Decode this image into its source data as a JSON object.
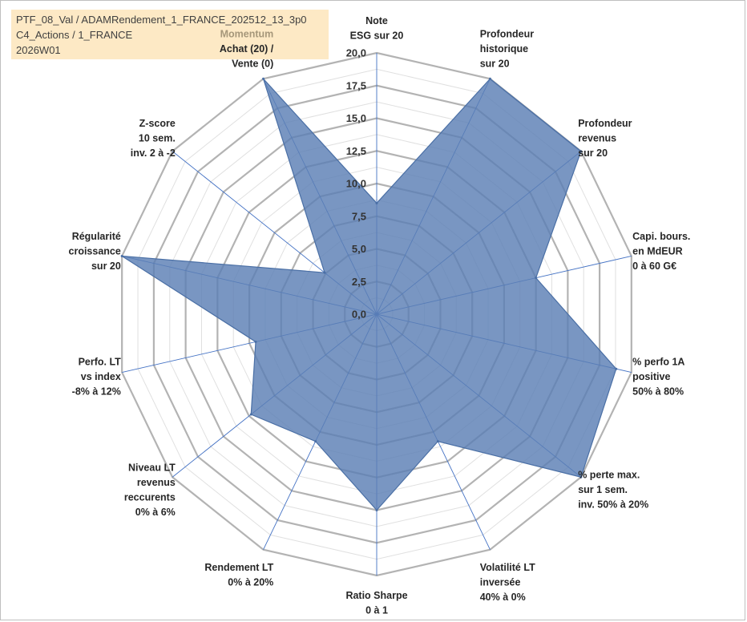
{
  "header": {
    "line1": "PTF_08_Val / ADAMRendement_1_FRANCE_202512_13_3p0",
    "line2": "C4_Actions / 1_FRANCE",
    "line3": "2026W01"
  },
  "colors": {
    "fill": "#5b7fb4",
    "stroke": "#4a6fa5",
    "spoke": "#4472c4",
    "grid_major": "#b3b3b3",
    "grid_minor": "#e0e0e0"
  },
  "chart_data": {
    "type": "radar",
    "title": "",
    "rmin": 0,
    "rmax": 20,
    "ticks": [
      "0,0",
      "2,5",
      "5,0",
      "7,5",
      "10,0",
      "12,5",
      "15,0",
      "17,5",
      "20,0"
    ],
    "tick_values": [
      0,
      2.5,
      5,
      7.5,
      10,
      12.5,
      15,
      17.5,
      20
    ],
    "minor_step": 1.25,
    "axes": [
      {
        "lines": [
          "Note",
          "ESG sur 20"
        ],
        "value": 8.5
      },
      {
        "lines": [
          "Profondeur",
          "historique",
          "sur 20"
        ],
        "value": 20
      },
      {
        "lines": [
          "Profondeur",
          "revenus",
          "sur 20"
        ],
        "value": 20
      },
      {
        "lines": [
          "Capi. bours.",
          "en MdEUR",
          "0 à 60 G€"
        ],
        "value": 12.5
      },
      {
        "lines": [
          "% perfo 1A",
          "positive",
          "50% à 80%"
        ],
        "value": 18.8
      },
      {
        "lines": [
          "% perte max.",
          "sur 1 sem.",
          "inv. 50% à 20%"
        ],
        "value": 20
      },
      {
        "lines": [
          "Volatilité LT",
          "inversée",
          "40% à 0%"
        ],
        "value": 10.8
      },
      {
        "lines": [
          "Ratio Sharpe",
          "0 à 1"
        ],
        "value": 15
      },
      {
        "lines": [
          "Rendement LT",
          "0% à 20%"
        ],
        "value": 10.8
      },
      {
        "lines": [
          "Niveau LT",
          "revenus",
          "reccurents",
          "0% à 6%"
        ],
        "value": 12.3
      },
      {
        "lines": [
          "Perfo. LT",
          "vs index",
          "-8% à 12%"
        ],
        "value": 9.5
      },
      {
        "lines": [
          "Régularité",
          "croissance",
          "sur 20"
        ],
        "value": 20
      },
      {
        "lines": [
          "Z-score",
          "10 sem.",
          "inv. 2 à -2"
        ],
        "value": 5.1
      },
      {
        "lines": [
          "Momentum",
          "Achat (20) /",
          "Vente (0)"
        ],
        "value": 20
      }
    ]
  }
}
